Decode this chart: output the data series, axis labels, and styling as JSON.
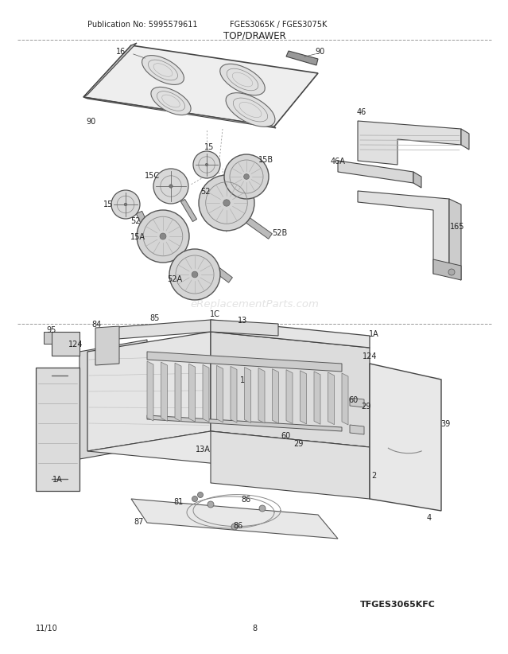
{
  "title": "TOP/DRAWER",
  "pub_no": "Publication No: 5995579611",
  "model": "FGES3065K / FGES3075K",
  "diagram_code": "TFGES3065KFC",
  "date": "11/10",
  "page": "8",
  "background_color": "#ffffff",
  "text_color": "#222222",
  "line_color": "#444444",
  "watermark": "eReplacementParts.com",
  "lc": "#444444",
  "fc_light": "#e8e8e8",
  "fc_mid": "#d0d0d0",
  "fc_dark": "#bbbbbb"
}
